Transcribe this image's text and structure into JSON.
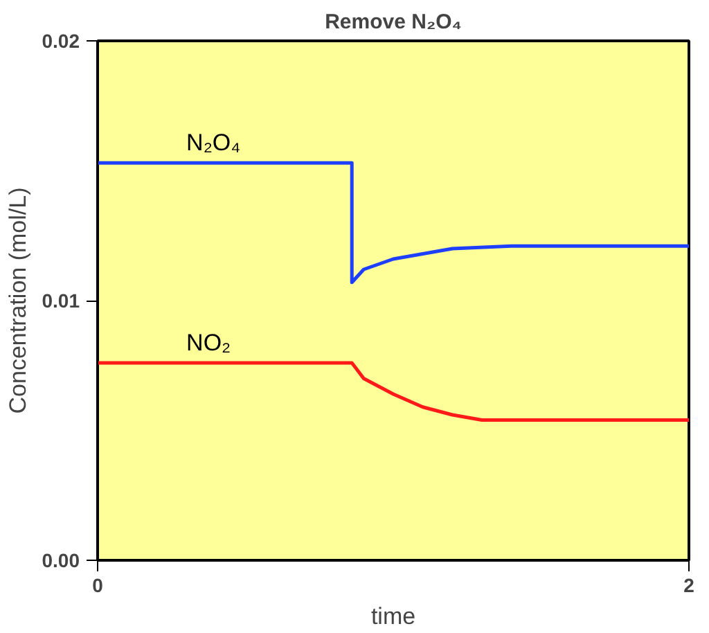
{
  "chart_data": {
    "type": "line",
    "title": "Remove N₂O₄",
    "xlabel": "time",
    "ylabel": "Concentration (mol/L)",
    "xlim": [
      0,
      2
    ],
    "ylim": [
      0,
      0.02
    ],
    "xticks": [
      0,
      2
    ],
    "yticks": [
      {
        "value": 0,
        "label": "0.00"
      },
      {
        "value": 0.01,
        "label": "0.01"
      },
      {
        "value": 0.02,
        "label": "0.02"
      }
    ],
    "grid": false,
    "marker": "none",
    "line_style": "solid",
    "series": [
      {
        "color": "#1f3fff",
        "x": [
          0,
          0.86,
          0.86,
          0.9,
          1.0,
          1.1,
          1.2,
          1.4,
          2.0
        ],
        "values": [
          0.0153,
          0.0153,
          0.0107,
          0.0112,
          0.0116,
          0.0118,
          0.012,
          0.0121,
          0.0121
        ]
      },
      {
        "color": "#ff1a1a",
        "x": [
          0,
          0.86,
          0.9,
          1.0,
          1.1,
          1.2,
          1.3,
          2.0
        ],
        "values": [
          0.0076,
          0.0076,
          0.007,
          0.0064,
          0.0059,
          0.0056,
          0.0054,
          0.0054
        ]
      }
    ],
    "annotations": [
      {
        "text": "N₂O₄",
        "x": 0.3,
        "y": 0.0153
      },
      {
        "text": "NO₂",
        "x": 0.3,
        "y": 0.0076
      }
    ]
  }
}
